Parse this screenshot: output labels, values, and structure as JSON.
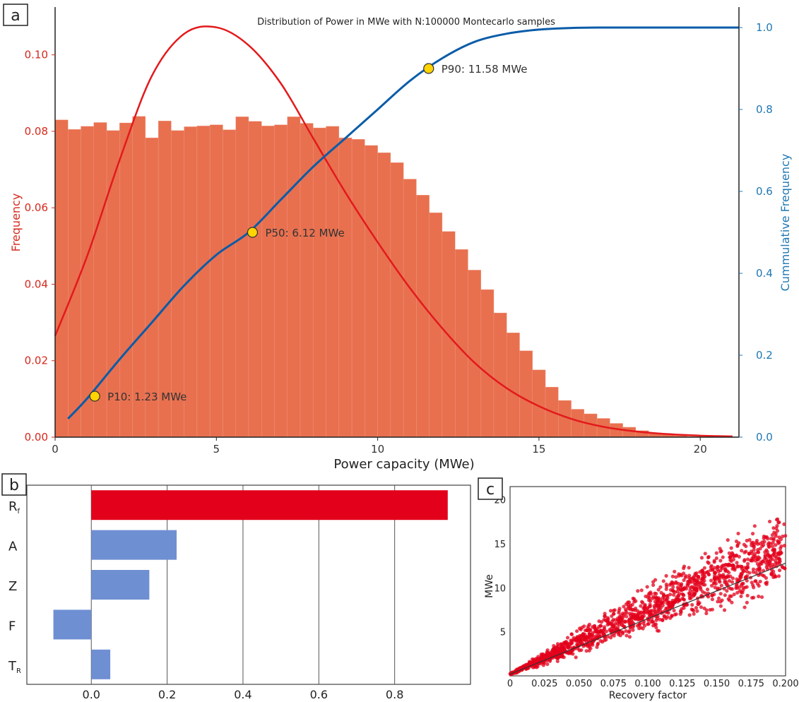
{
  "panels": {
    "a_label": "a",
    "b_label": "b",
    "c_label": "c"
  },
  "chart_data": [
    {
      "type": "bar",
      "panel": "a",
      "title": "Distribution of Power in MWe with N:100000 Montecarlo samples",
      "xlabel": "Power capacity (MWe)",
      "ylabel": "Frequency",
      "ylabel_right": "Cummulative Frequency",
      "xlim": [
        0,
        21.2
      ],
      "ylim": [
        0,
        0.1125
      ],
      "ylim_right": [
        0,
        1.05
      ],
      "xticks": [
        "0",
        "5",
        "10",
        "15",
        "20"
      ],
      "yticks": [
        "0.00",
        "0.02",
        "0.04",
        "0.06",
        "0.08",
        "0.10"
      ],
      "yticks_right": [
        "0.0",
        "0.2",
        "0.4",
        "0.6",
        "0.8",
        "1.0"
      ],
      "colors": {
        "bars": "#e8704f",
        "pdf": "#e3191c",
        "cdf": "#0a5ca8",
        "marker": "#ffd400",
        "left_axis": "#d6281c",
        "right_axis": "#1f77b4"
      },
      "histogram": {
        "bin_width": 0.4,
        "bin_start": 0,
        "values": [
          0.083,
          0.0805,
          0.0813,
          0.0823,
          0.0802,
          0.0822,
          0.0839,
          0.0783,
          0.0827,
          0.0802,
          0.0812,
          0.0814,
          0.0817,
          0.0804,
          0.0838,
          0.0826,
          0.0814,
          0.0817,
          0.0838,
          0.0821,
          0.0809,
          0.0813,
          0.0783,
          0.0779,
          0.0763,
          0.0744,
          0.0718,
          0.0675,
          0.0633,
          0.0587,
          0.0538,
          0.0491,
          0.0437,
          0.0386,
          0.0325,
          0.0273,
          0.0226,
          0.0176,
          0.0131,
          0.0096,
          0.0073,
          0.0061,
          0.0049,
          0.0036,
          0.0026,
          0.0017,
          0.0011,
          0.0007,
          0.0004,
          0.0002,
          0.0001,
          0.0001,
          0.0001
        ]
      },
      "pdf_curve": {
        "name": "",
        "x": [
          0,
          1,
          2,
          3,
          4,
          5,
          6,
          7,
          8,
          9,
          10,
          11,
          12,
          13,
          14,
          15,
          16,
          17,
          18,
          19,
          20,
          21
        ],
        "y": [
          0.0265,
          0.0475,
          0.0725,
          0.0945,
          0.1055,
          0.1072,
          0.1025,
          0.0925,
          0.0782,
          0.064,
          0.051,
          0.039,
          0.0285,
          0.0195,
          0.0128,
          0.0081,
          0.0048,
          0.0027,
          0.0015,
          0.0008,
          0.0004,
          0.0002
        ]
      },
      "cdf_curve": {
        "name": "",
        "x": [
          0.4,
          1,
          2,
          3,
          4,
          5,
          6,
          7,
          8,
          9,
          10,
          11,
          12,
          13,
          14,
          15,
          16,
          17,
          18,
          19,
          20,
          21.2
        ],
        "y": [
          0.045,
          0.095,
          0.19,
          0.28,
          0.37,
          0.445,
          0.5,
          0.58,
          0.66,
          0.73,
          0.8,
          0.87,
          0.925,
          0.965,
          0.985,
          0.995,
          0.999,
          1.0,
          1.0,
          1.0,
          1.0,
          1.0
        ]
      },
      "annotations": [
        {
          "label": "P10: 1.23 MWe",
          "x": 1.23,
          "y": 0.1
        },
        {
          "label": "P50: 6.12 MWe",
          "x": 6.12,
          "y": 0.5
        },
        {
          "label": "P90: 11.58 MWe",
          "x": 11.58,
          "y": 0.9
        }
      ]
    },
    {
      "type": "bar",
      "panel": "b",
      "orientation": "horizontal",
      "categories": [
        "Rf",
        "A",
        "Z",
        "F",
        "TR"
      ],
      "category_labels": [
        {
          "main": "R",
          "sub": "f"
        },
        {
          "main": "A",
          "sub": ""
        },
        {
          "main": "Z",
          "sub": ""
        },
        {
          "main": "F",
          "sub": ""
        },
        {
          "main": "T",
          "sub": "R"
        }
      ],
      "values": [
        0.94,
        0.225,
        0.153,
        -0.1,
        0.05
      ],
      "colors": [
        "#e3001b",
        "#6f8fd3",
        "#6f8fd3",
        "#6f8fd3",
        "#6f8fd3"
      ],
      "xlim": [
        -0.17,
        1.0
      ],
      "xticks": [
        "0.0",
        "0.2",
        "0.4",
        "0.6",
        "0.8"
      ],
      "grid": true
    },
    {
      "type": "scatter",
      "panel": "c",
      "xlabel": "Recovery factor",
      "ylabel": "MWe",
      "xlim": [
        0,
        0.2
      ],
      "ylim": [
        0,
        21.5
      ],
      "xticks": [
        "0",
        "0.025",
        "0.050",
        "0.075",
        "0.100",
        "0.125",
        "0.150",
        "0.175",
        "0.200"
      ],
      "yticks": [
        "5",
        "10",
        "15",
        "20"
      ],
      "point_color": "#e3001b",
      "trend_line": {
        "x": [
          0,
          0.2
        ],
        "y": [
          0.2,
          12.8
        ],
        "color": "#333333"
      },
      "spread_envelope": {
        "x": [
          0,
          0.05,
          0.1,
          0.15,
          0.2
        ],
        "low": [
          0.1,
          1.8,
          4.3,
          6.3,
          8.2
        ],
        "high": [
          0.3,
          5.8,
          10.8,
          15.9,
          20.5
        ]
      }
    }
  ]
}
